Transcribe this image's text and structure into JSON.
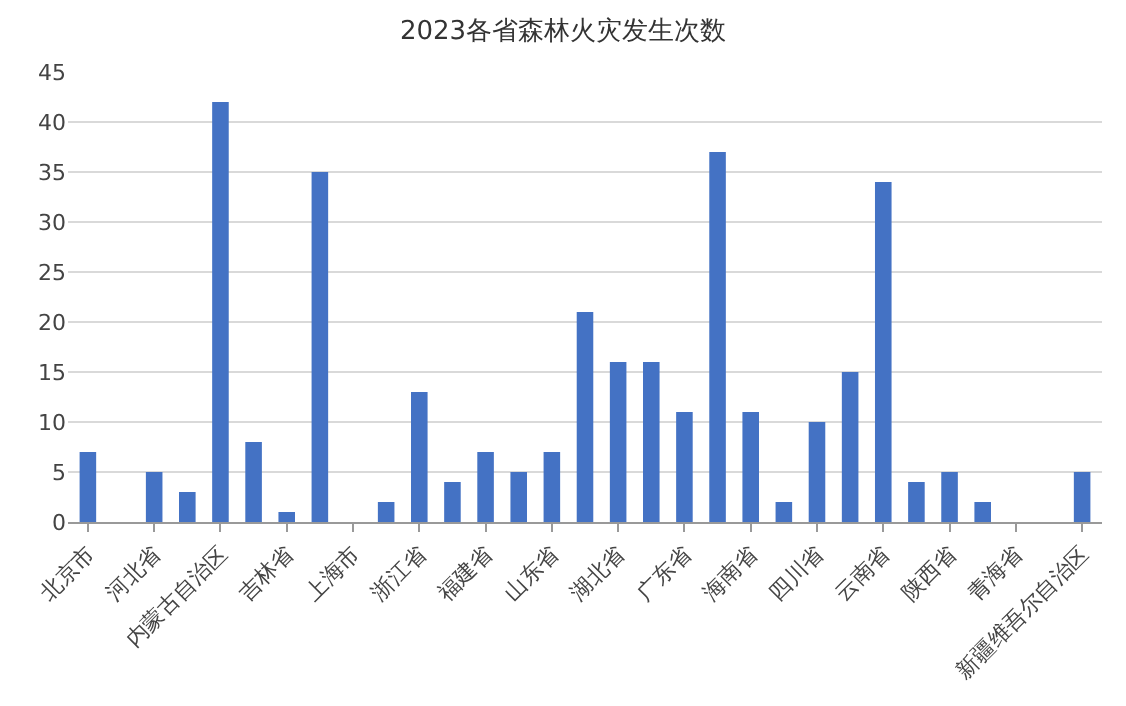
{
  "chart_data": {
    "type": "bar",
    "title": "2023各省森林火灾发生次数",
    "categories": [
      "北京市",
      null,
      "河北省",
      null,
      "内蒙古自治区",
      null,
      "吉林省",
      null,
      "上海市",
      null,
      "浙江省",
      null,
      "福建省",
      null,
      "山东省",
      null,
      "湖北省",
      null,
      "广东省",
      null,
      "海南省",
      null,
      "四川省",
      null,
      "云南省",
      null,
      "陕西省",
      null,
      "青海省",
      null,
      "新疆维吾尔自治区"
    ],
    "values": [
      7,
      0,
      5,
      3,
      42,
      8,
      1,
      35,
      0,
      2,
      13,
      4,
      7,
      5,
      7,
      21,
      16,
      16,
      11,
      37,
      11,
      2,
      10,
      15,
      34,
      4,
      5,
      2,
      0,
      0,
      5
    ],
    "color": "#4472c4",
    "ylim": [
      0,
      45
    ],
    "yticks": [
      0,
      5,
      10,
      15,
      20,
      25,
      30,
      35,
      40,
      45
    ],
    "grid": "y"
  }
}
